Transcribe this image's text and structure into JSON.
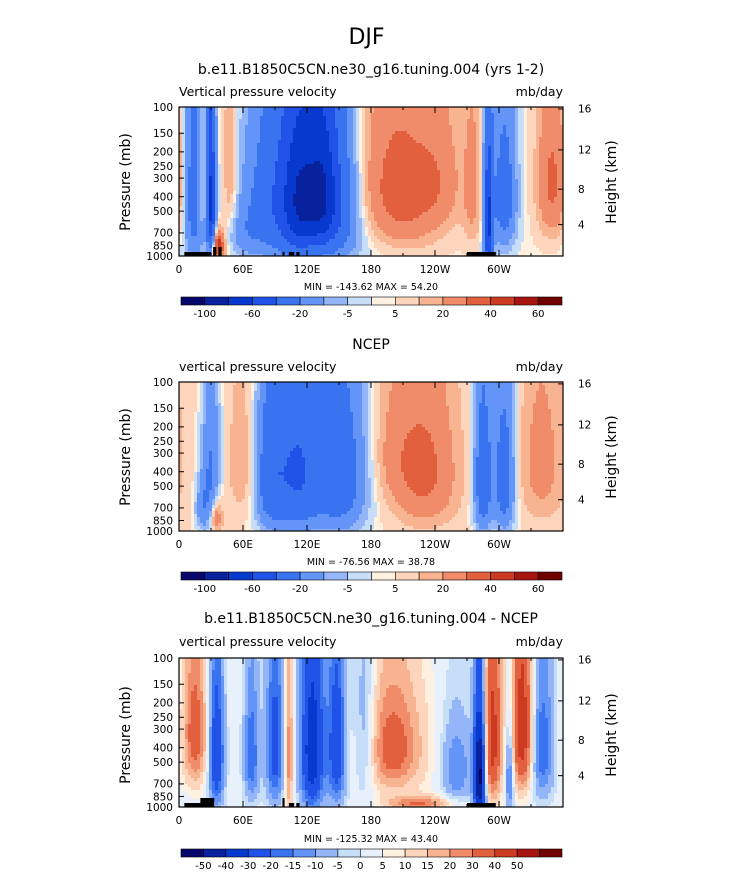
{
  "figure": {
    "title": "DJF"
  },
  "colors": {
    "levels_main": [
      "#08086b",
      "#08219c",
      "#0839ce",
      "#2152e7",
      "#3973ef",
      "#6394f7",
      "#94b5f7",
      "#c6def7",
      "#fff0e0",
      "#fdd5bd",
      "#f8b391",
      "#f08c69",
      "#e3603e",
      "#cd3a22",
      "#a81510",
      "#700000"
    ],
    "levels_diff": [
      "#08086b",
      "#08219c",
      "#0839ce",
      "#2152e7",
      "#3973ef",
      "#6394f7",
      "#94b5f7",
      "#c6def7",
      "#e8f0fb",
      "#fff0e0",
      "#fdd5bd",
      "#f8b391",
      "#f08c69",
      "#e3603e",
      "#cd3a22",
      "#a81510",
      "#700000"
    ]
  },
  "chart_data": [
    {
      "type": "heatmap",
      "title": "b.e11.B1850C5CN.ne30_g16.tuning.004 (yrs 1-2)",
      "left_label": "Vertical pressure velocity",
      "right_label": "mb/day",
      "ylabel": "Pressure (mb)",
      "y2label": "Height (km)",
      "x_ticks": [
        "0",
        "60E",
        "120E",
        "180",
        "120W",
        "60W"
      ],
      "x_tick_lon": [
        0,
        60,
        120,
        180,
        240,
        300
      ],
      "y_ticks": [
        "100",
        "150",
        "200",
        "250",
        "300",
        "400",
        "500",
        "700",
        "850",
        "1000"
      ],
      "y_tick_p": [
        100,
        150,
        200,
        250,
        300,
        400,
        500,
        700,
        850,
        1000
      ],
      "y2_ticks": [
        "16",
        "12",
        "8",
        "4"
      ],
      "y2_tick_p": [
        103,
        194,
        356,
        616
      ],
      "stats": "MIN = -143.62   MAX =  54.20",
      "cbar_labels": [
        "-100",
        "-60",
        "-20",
        "-5",
        "5",
        "20",
        "40",
        "60"
      ],
      "field": {
        "base": 0.2,
        "features": [
          {
            "lon": 37,
            "p": 860,
            "slon": 4,
            "sp": 140,
            "a": 40
          },
          {
            "lon": 15,
            "p": 380,
            "slon": 7,
            "sp": 400,
            "a": -35
          },
          {
            "lon": 30,
            "p": 420,
            "slon": 3,
            "sp": 330,
            "a": -70
          },
          {
            "lon": 48,
            "p": 300,
            "slon": 5,
            "sp": 300,
            "a": 12
          },
          {
            "lon": 22,
            "p": 350,
            "slon": 6,
            "sp": 250,
            "a": 18
          },
          {
            "lon": 95,
            "p": 420,
            "slon": 22,
            "sp": 380,
            "a": -38
          },
          {
            "lon": 115,
            "p": 420,
            "slon": 12,
            "sp": 360,
            "a": -55
          },
          {
            "lon": 135,
            "p": 380,
            "slon": 10,
            "sp": 320,
            "a": -50
          },
          {
            "lon": 150,
            "p": 430,
            "slon": 14,
            "sp": 380,
            "a": -30
          },
          {
            "lon": 205,
            "p": 380,
            "slon": 28,
            "sp": 300,
            "a": 28
          },
          {
            "lon": 245,
            "p": 300,
            "slon": 14,
            "sp": 200,
            "a": 10
          },
          {
            "lon": 290,
            "p": 600,
            "slon": 3,
            "sp": 400,
            "a": -65
          },
          {
            "lon": 305,
            "p": 400,
            "slon": 8,
            "sp": 300,
            "a": -30
          },
          {
            "lon": 275,
            "p": 350,
            "slon": 6,
            "sp": 300,
            "a": 12
          },
          {
            "lon": 350,
            "p": 320,
            "slon": 10,
            "sp": 260,
            "a": 22
          },
          {
            "lon": 175,
            "p": 600,
            "slon": 25,
            "sp": 300,
            "a": -6
          },
          {
            "lon": 60,
            "p": 700,
            "slon": 12,
            "sp": 200,
            "a": -10
          }
        ]
      },
      "land": [
        [
          5,
          30
        ],
        [
          32,
          35
        ],
        [
          37,
          40
        ],
        [
          97,
          99
        ],
        [
          103,
          108
        ],
        [
          110,
          113
        ],
        [
          270,
          297
        ]
      ]
    },
    {
      "type": "heatmap",
      "title": "NCEP",
      "left_label": "vertical pressure velocity",
      "right_label": "mb/day",
      "ylabel": "Pressure (mb)",
      "y2label": "Height (km)",
      "x_ticks": [
        "0",
        "60E",
        "120E",
        "180",
        "120W",
        "60W"
      ],
      "x_tick_lon": [
        0,
        60,
        120,
        180,
        240,
        300
      ],
      "y_ticks": [
        "100",
        "150",
        "200",
        "250",
        "300",
        "400",
        "500",
        "700",
        "850",
        "1000"
      ],
      "y_tick_p": [
        100,
        150,
        200,
        250,
        300,
        400,
        500,
        700,
        850,
        1000
      ],
      "y2_ticks": [
        "16",
        "12",
        "8",
        "4"
      ],
      "y2_tick_p": [
        103,
        194,
        356,
        616
      ],
      "stats": "MIN = -76.56   MAX =  38.78",
      "cbar_labels": [
        "-100",
        "-60",
        "-20",
        "-5",
        "5",
        "20",
        "40",
        "60"
      ],
      "field": {
        "base": 1.5,
        "features": [
          {
            "lon": 30,
            "p": 380,
            "slon": 6,
            "sp": 330,
            "a": -22
          },
          {
            "lon": 35,
            "p": 800,
            "slon": 4,
            "sp": 150,
            "a": 18
          },
          {
            "lon": 22,
            "p": 700,
            "slon": 5,
            "sp": 200,
            "a": -15
          },
          {
            "lon": 85,
            "p": 430,
            "slon": 10,
            "sp": 360,
            "a": -28
          },
          {
            "lon": 110,
            "p": 400,
            "slon": 15,
            "sp": 380,
            "a": -40
          },
          {
            "lon": 150,
            "p": 420,
            "slon": 18,
            "sp": 380,
            "a": -34
          },
          {
            "lon": 230,
            "p": 400,
            "slon": 20,
            "sp": 300,
            "a": 22
          },
          {
            "lon": 200,
            "p": 300,
            "slon": 15,
            "sp": 200,
            "a": 8
          },
          {
            "lon": 285,
            "p": 450,
            "slon": 6,
            "sp": 350,
            "a": -35
          },
          {
            "lon": 305,
            "p": 450,
            "slon": 7,
            "sp": 350,
            "a": -32
          },
          {
            "lon": 340,
            "p": 350,
            "slon": 15,
            "sp": 300,
            "a": 12
          },
          {
            "lon": 60,
            "p": 350,
            "slon": 10,
            "sp": 250,
            "a": 8
          }
        ]
      },
      "land": []
    },
    {
      "type": "heatmap",
      "title": "b.e11.B1850C5CN.ne30_g16.tuning.004 - NCEP",
      "left_label": "vertical pressure velocity",
      "right_label": "mb/day",
      "ylabel": "Pressure (mb)",
      "y2label": "Height (km)",
      "x_ticks": [
        "0",
        "60E",
        "120E",
        "180",
        "120W",
        "60W"
      ],
      "x_tick_lon": [
        0,
        60,
        120,
        180,
        240,
        300
      ],
      "y_ticks": [
        "100",
        "150",
        "200",
        "250",
        "300",
        "400",
        "500",
        "700",
        "850",
        "1000"
      ],
      "y_tick_p": [
        100,
        150,
        200,
        250,
        300,
        400,
        500,
        700,
        850,
        1000
      ],
      "y2_ticks": [
        "16",
        "12",
        "8",
        "4"
      ],
      "y2_tick_p": [
        103,
        194,
        356,
        616
      ],
      "stats": "MIN = -125.32   MAX =  43.40",
      "cbar_labels": [
        "-50",
        "-40",
        "-30",
        "-20",
        "-15",
        "-10",
        "-5",
        "0",
        "5",
        "10",
        "15",
        "20",
        "30",
        "40",
        "50"
      ],
      "field": {
        "base": 0.0,
        "features": [
          {
            "lon": 15,
            "p": 320,
            "slon": 8,
            "sp": 250,
            "a": 25
          },
          {
            "lon": 35,
            "p": 450,
            "slon": 5,
            "sp": 350,
            "a": -30
          },
          {
            "lon": 68,
            "p": 450,
            "slon": 5,
            "sp": 300,
            "a": -20
          },
          {
            "lon": 90,
            "p": 400,
            "slon": 6,
            "sp": 350,
            "a": -25
          },
          {
            "lon": 103,
            "p": 450,
            "slon": 3,
            "sp": 400,
            "a": 20
          },
          {
            "lon": 125,
            "p": 420,
            "slon": 8,
            "sp": 400,
            "a": -38
          },
          {
            "lon": 148,
            "p": 400,
            "slon": 6,
            "sp": 350,
            "a": -28
          },
          {
            "lon": 200,
            "p": 400,
            "slon": 20,
            "sp": 250,
            "a": 25
          },
          {
            "lon": 225,
            "p": 950,
            "slon": 20,
            "sp": 80,
            "a": 20
          },
          {
            "lon": 260,
            "p": 550,
            "slon": 10,
            "sp": 250,
            "a": -15
          },
          {
            "lon": 282,
            "p": 600,
            "slon": 4,
            "sp": 400,
            "a": -55
          },
          {
            "lon": 294,
            "p": 350,
            "slon": 6,
            "sp": 350,
            "a": 35
          },
          {
            "lon": 322,
            "p": 300,
            "slon": 7,
            "sp": 300,
            "a": 38
          },
          {
            "lon": 310,
            "p": 600,
            "slon": 3,
            "sp": 300,
            "a": -20
          },
          {
            "lon": 340,
            "p": 400,
            "slon": 8,
            "sp": 300,
            "a": -20
          },
          {
            "lon": 175,
            "p": 350,
            "slon": 8,
            "sp": 300,
            "a": -15
          }
        ]
      },
      "land": [
        [
          5,
          30
        ],
        [
          20,
          33
        ],
        [
          97,
          99
        ],
        [
          103,
          108
        ],
        [
          110,
          113
        ],
        [
          270,
          297
        ]
      ]
    }
  ]
}
